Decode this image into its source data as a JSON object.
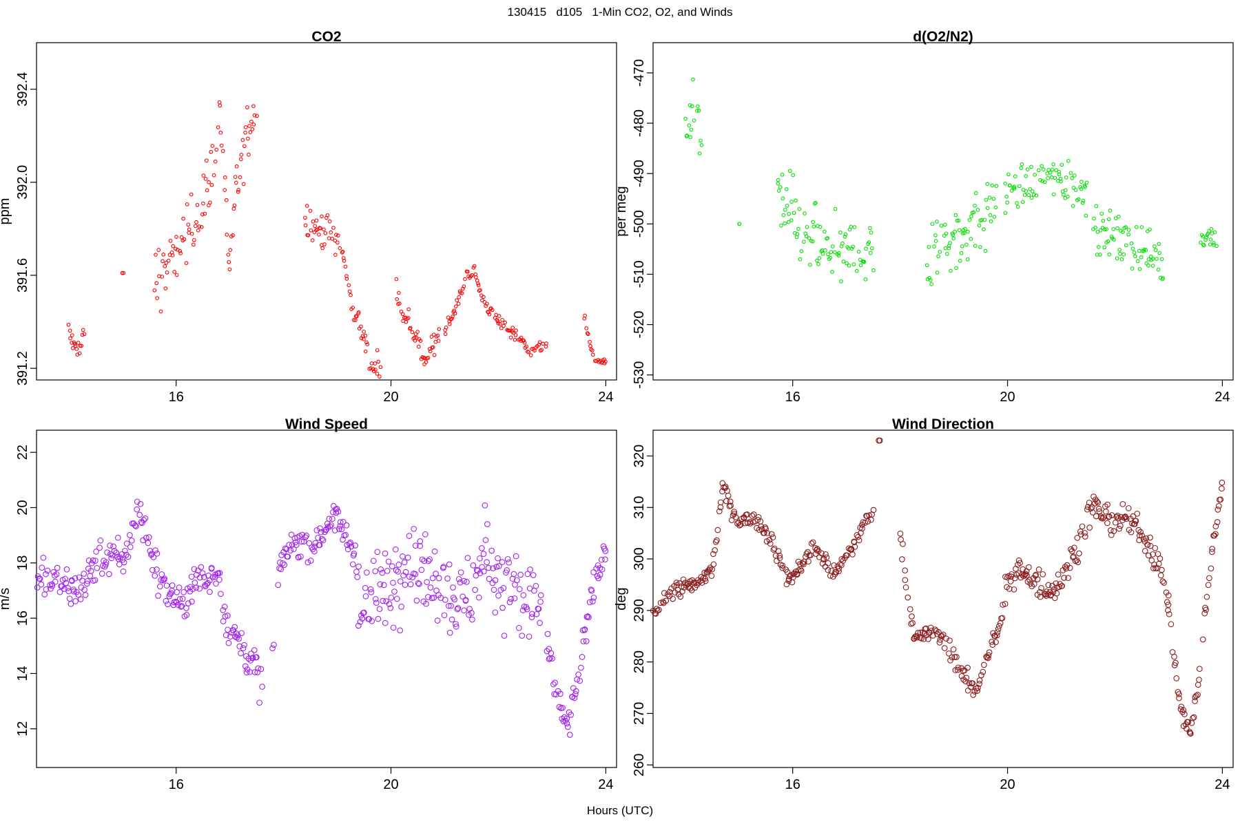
{
  "figure": {
    "title": "130415   d105   1-Min CO2, O2, and Winds",
    "x_axis_title": "Hours (UTC)"
  },
  "chart_data": [
    {
      "type": "scatter",
      "title": "CO2",
      "ylabel": "ppm",
      "xlabel": "",
      "color": "#ff0000",
      "xlim": [
        13.4,
        24.2
      ],
      "ylim": [
        391.15,
        392.6
      ],
      "xticks": [
        16,
        20,
        24
      ],
      "yticks": [
        391.2,
        391.6,
        392.0,
        392.4
      ],
      "ytick_labels": [
        "391.2",
        "391.6",
        "392.0",
        "392.4"
      ],
      "segments": [
        {
          "x_start": 14.0,
          "x_end": 14.3,
          "anchors": [
            [
              14.0,
              391.35
            ],
            [
              14.1,
              391.3
            ],
            [
              14.2,
              391.28
            ],
            [
              14.3,
              391.36
            ]
          ],
          "noise": 0.04
        },
        {
          "x_start": 15.0,
          "x_end": 15.0,
          "anchors": [
            [
              15.0,
              391.61
            ]
          ],
          "noise": 0.0
        },
        {
          "x_start": 15.6,
          "x_end": 17.5,
          "anchors": [
            [
              15.6,
              391.6
            ],
            [
              15.9,
              391.65
            ],
            [
              16.2,
              391.78
            ],
            [
              16.5,
              391.9
            ],
            [
              16.7,
              392.05
            ],
            [
              16.8,
              392.35
            ],
            [
              16.95,
              391.8
            ],
            [
              17.0,
              391.6
            ],
            [
              17.1,
              391.95
            ],
            [
              17.4,
              392.3
            ],
            [
              17.5,
              392.3
            ]
          ],
          "noise": 0.12
        },
        {
          "x_start": 18.4,
          "x_end": 19.8,
          "anchors": [
            [
              18.4,
              391.85
            ],
            [
              18.7,
              391.8
            ],
            [
              18.9,
              391.78
            ],
            [
              19.1,
              391.7
            ],
            [
              19.2,
              391.55
            ],
            [
              19.35,
              391.42
            ],
            [
              19.45,
              391.38
            ],
            [
              19.6,
              391.22
            ],
            [
              19.8,
              391.21
            ]
          ],
          "noise": 0.06
        },
        {
          "x_start": 20.1,
          "x_end": 20.9,
          "anchors": [
            [
              20.1,
              391.55
            ],
            [
              20.2,
              391.45
            ],
            [
              20.3,
              391.4
            ],
            [
              20.5,
              391.33
            ],
            [
              20.6,
              391.22
            ],
            [
              20.8,
              391.3
            ],
            [
              20.9,
              391.35
            ]
          ],
          "noise": 0.04
        },
        {
          "x_start": 21.0,
          "x_end": 22.9,
          "anchors": [
            [
              21.0,
              391.37
            ],
            [
              21.2,
              391.45
            ],
            [
              21.4,
              391.6
            ],
            [
              21.55,
              391.62
            ],
            [
              21.7,
              391.5
            ],
            [
              21.9,
              391.43
            ],
            [
              22.1,
              391.38
            ],
            [
              22.3,
              391.35
            ],
            [
              22.6,
              391.28
            ],
            [
              22.9,
              391.3
            ]
          ],
          "noise": 0.025
        },
        {
          "x_start": 23.6,
          "x_end": 24.0,
          "anchors": [
            [
              23.6,
              391.42
            ],
            [
              23.7,
              391.3
            ],
            [
              23.8,
              391.24
            ],
            [
              24.0,
              391.22
            ]
          ],
          "noise": 0.02
        }
      ]
    },
    {
      "type": "scatter",
      "title": "d(O2/N2)",
      "ylabel": "per meg",
      "xlabel": "",
      "color": "#00e000",
      "xlim": [
        13.4,
        24.2
      ],
      "ylim": [
        -531,
        -464
      ],
      "xticks": [
        16,
        20,
        24
      ],
      "yticks": [
        -530,
        -520,
        -510,
        -500,
        -490,
        -480,
        -470
      ],
      "ytick_labels": [
        "-530",
        "-520",
        "-510",
        "-500",
        "-490",
        "-480",
        "-470"
      ],
      "segments": [
        {
          "x_start": 14.0,
          "x_end": 14.3,
          "anchors": [
            [
              14.0,
              -480
            ],
            [
              14.15,
              -477
            ],
            [
              14.3,
              -484
            ]
          ],
          "noise": 5
        },
        {
          "x_start": 15.0,
          "x_end": 15.0,
          "anchors": [
            [
              15.0,
              -500
            ]
          ],
          "noise": 0
        },
        {
          "x_start": 15.7,
          "x_end": 17.5,
          "anchors": [
            [
              15.7,
              -495
            ],
            [
              16.0,
              -498
            ],
            [
              16.3,
              -503
            ],
            [
              16.6,
              -506
            ],
            [
              16.9,
              -507
            ],
            [
              17.2,
              -505
            ],
            [
              17.5,
              -506
            ]
          ],
          "noise": 6
        },
        {
          "x_start": 18.5,
          "x_end": 19.8,
          "anchors": [
            [
              18.5,
              -508
            ],
            [
              18.8,
              -503
            ],
            [
              19.1,
              -503
            ],
            [
              19.4,
              -500
            ],
            [
              19.8,
              -497
            ]
          ],
          "noise": 7
        },
        {
          "x_start": 19.9,
          "x_end": 21.5,
          "anchors": [
            [
              19.9,
              -495
            ],
            [
              20.3,
              -493
            ],
            [
              20.7,
              -491
            ],
            [
              21.0,
              -491
            ],
            [
              21.3,
              -493
            ],
            [
              21.5,
              -494
            ]
          ],
          "noise": 4
        },
        {
          "x_start": 21.6,
          "x_end": 22.9,
          "anchors": [
            [
              21.6,
              -500
            ],
            [
              21.9,
              -502
            ],
            [
              22.2,
              -504
            ],
            [
              22.5,
              -505
            ],
            [
              22.9,
              -508
            ]
          ],
          "noise": 4
        },
        {
          "x_start": 23.6,
          "x_end": 23.9,
          "anchors": [
            [
              23.6,
              -503
            ],
            [
              23.75,
              -502
            ],
            [
              23.9,
              -504
            ]
          ],
          "noise": 2
        }
      ]
    },
    {
      "type": "scatter",
      "title": "Wind Speed",
      "ylabel": "m/s",
      "xlabel": "",
      "color": "#a020f0",
      "xlim": [
        13.4,
        24.2
      ],
      "ylim": [
        10.6,
        22.8
      ],
      "xticks": [
        16,
        20,
        24
      ],
      "yticks": [
        12,
        14,
        16,
        18,
        20,
        22
      ],
      "ytick_labels": [
        "12",
        "14",
        "16",
        "18",
        "20",
        "22"
      ],
      "segments": [
        {
          "x_start": 13.4,
          "x_end": 17.6,
          "anchors": [
            [
              13.4,
              17.5
            ],
            [
              13.8,
              17.3
            ],
            [
              14.2,
              17.0
            ],
            [
              14.6,
              18.3
            ],
            [
              15.0,
              18.0
            ],
            [
              15.3,
              20.0
            ],
            [
              15.5,
              18.5
            ],
            [
              15.8,
              17.0
            ],
            [
              16.1,
              16.6
            ],
            [
              16.4,
              17.3
            ],
            [
              16.8,
              17.6
            ],
            [
              16.9,
              16.0
            ],
            [
              17.2,
              15.0
            ],
            [
              17.4,
              14.5
            ],
            [
              17.6,
              13.5
            ]
          ],
          "noise": 0.6
        },
        {
          "x_start": 17.8,
          "x_end": 17.8,
          "anchors": [
            [
              17.8,
              14.8
            ]
          ],
          "noise": 0.5
        },
        {
          "x_start": 17.9,
          "x_end": 19.4,
          "anchors": [
            [
              17.9,
              17.6
            ],
            [
              18.2,
              18.8
            ],
            [
              18.6,
              18.7
            ],
            [
              18.9,
              19.8
            ],
            [
              19.2,
              18.8
            ],
            [
              19.4,
              18.0
            ]
          ],
          "noise": 0.5
        },
        {
          "x_start": 19.4,
          "x_end": 22.8,
          "anchors": [
            [
              19.4,
              16.0
            ],
            [
              19.8,
              16.8
            ],
            [
              20.3,
              18.3
            ],
            [
              20.7,
              17.8
            ],
            [
              21.1,
              17.0
            ],
            [
              21.4,
              16.5
            ],
            [
              21.8,
              18.5
            ],
            [
              22.1,
              17.3
            ],
            [
              22.4,
              16.5
            ],
            [
              22.7,
              16.6
            ],
            [
              22.8,
              16.0
            ]
          ],
          "noise": 1.4
        },
        {
          "x_start": 22.9,
          "x_end": 24.0,
          "anchors": [
            [
              22.9,
              15.0
            ],
            [
              23.1,
              13.0
            ],
            [
              23.3,
              12.0
            ],
            [
              23.5,
              14.0
            ],
            [
              23.7,
              16.5
            ],
            [
              24.0,
              18.7
            ]
          ],
          "noise": 0.6
        }
      ]
    },
    {
      "type": "scatter",
      "title": "Wind Direction",
      "ylabel": "deg",
      "xlabel": "",
      "color": "#8b1a1a",
      "xlim": [
        13.4,
        24.2
      ],
      "ylim": [
        259.5,
        325
      ],
      "xticks": [
        16,
        20,
        24
      ],
      "yticks": [
        260,
        270,
        280,
        290,
        300,
        310,
        320
      ],
      "ytick_labels": [
        "260",
        "270",
        "280",
        "290",
        "300",
        "310",
        "320"
      ],
      "segments": [
        {
          "x_start": 13.4,
          "x_end": 17.5,
          "anchors": [
            [
              13.4,
              290
            ],
            [
              13.8,
              294
            ],
            [
              14.2,
              295
            ],
            [
              14.5,
              298
            ],
            [
              14.7,
              314
            ],
            [
              15.0,
              307
            ],
            [
              15.3,
              308
            ],
            [
              15.6,
              304
            ],
            [
              15.9,
              296
            ],
            [
              16.1,
              298
            ],
            [
              16.4,
              302
            ],
            [
              16.8,
              297
            ],
            [
              17.1,
              302
            ],
            [
              17.3,
              306
            ],
            [
              17.5,
              310
            ]
          ],
          "noise": 1.5
        },
        {
          "x_start": 17.6,
          "x_end": 17.6,
          "anchors": [
            [
              17.6,
              323
            ]
          ],
          "noise": 0
        },
        {
          "x_start": 18.0,
          "x_end": 19.9,
          "anchors": [
            [
              18.0,
              305
            ],
            [
              18.15,
              292
            ],
            [
              18.3,
              284
            ],
            [
              18.6,
              286
            ],
            [
              18.9,
              283
            ],
            [
              19.2,
              277
            ],
            [
              19.4,
              274
            ],
            [
              19.6,
              281
            ],
            [
              19.9,
              288
            ]
          ],
          "noise": 1.8
        },
        {
          "x_start": 19.9,
          "x_end": 23.0,
          "anchors": [
            [
              19.9,
              293
            ],
            [
              20.2,
              298
            ],
            [
              20.6,
              295
            ],
            [
              20.9,
              294
            ],
            [
              21.2,
              300
            ],
            [
              21.6,
              311
            ],
            [
              21.9,
              307
            ],
            [
              22.2,
              308
            ],
            [
              22.5,
              305
            ],
            [
              22.8,
              300
            ],
            [
              23.0,
              292
            ]
          ],
          "noise": 2.5
        },
        {
          "x_start": 23.0,
          "x_end": 24.0,
          "anchors": [
            [
              23.0,
              290
            ],
            [
              23.2,
              272
            ],
            [
              23.4,
              266
            ],
            [
              23.55,
              275
            ],
            [
              23.7,
              292
            ],
            [
              23.85,
              305
            ],
            [
              24.0,
              315
            ]
          ],
          "noise": 2
        }
      ]
    }
  ]
}
